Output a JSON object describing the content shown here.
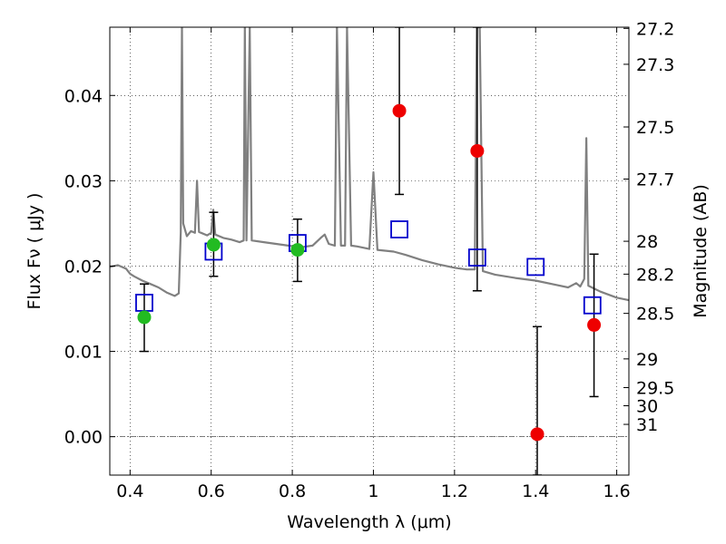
{
  "chart_data": {
    "type": "scatter",
    "title": "",
    "xlabel": "Wavelength  λ (μm)",
    "ylabel": "Flux  Fν  ( μJy )",
    "ylabel_right": "Magnitude (AB)",
    "xlim": [
      0.35,
      1.63
    ],
    "ylim": [
      -0.0045,
      0.048
    ],
    "grid": true,
    "x_ticks": [
      0.4,
      0.6,
      0.8,
      1.0,
      1.2,
      1.4,
      1.6
    ],
    "x_tick_labels": [
      "0.4",
      "0.6",
      "0.8",
      "1",
      "1.2",
      "1.4",
      "1.6"
    ],
    "y_ticks": [
      0.0,
      0.01,
      0.02,
      0.03,
      0.04
    ],
    "y_tick_labels": [
      "0.00",
      "0.01",
      "0.02",
      "0.03",
      "0.04"
    ],
    "right_ticks": [
      {
        "mag": 27.2,
        "label": "27.2"
      },
      {
        "mag": 27.3,
        "label": "27.3"
      },
      {
        "mag": 27.5,
        "label": "27.5"
      },
      {
        "mag": 27.7,
        "label": "27.7"
      },
      {
        "mag": 28.0,
        "label": "28"
      },
      {
        "mag": 28.2,
        "label": "28.2"
      },
      {
        "mag": 28.5,
        "label": "28.5"
      },
      {
        "mag": 29.0,
        "label": "29"
      },
      {
        "mag": 29.5,
        "label": "29.5"
      },
      {
        "mag": 30.0,
        "label": "30"
      },
      {
        "mag": 31.0,
        "label": "31"
      }
    ],
    "series": [
      {
        "kind": "line",
        "color": "#808080",
        "points": [
          [
            0.35,
            0.0199
          ],
          [
            0.37,
            0.0201
          ],
          [
            0.39,
            0.0197
          ],
          [
            0.4,
            0.0191
          ],
          [
            0.41,
            0.0188
          ],
          [
            0.43,
            0.0183
          ],
          [
            0.45,
            0.0179
          ],
          [
            0.47,
            0.0175
          ],
          [
            0.49,
            0.0169
          ],
          [
            0.51,
            0.0165
          ],
          [
            0.52,
            0.0168
          ],
          [
            0.525,
            0.024
          ],
          [
            0.528,
            0.048
          ],
          [
            0.531,
            0.025
          ],
          [
            0.54,
            0.0235
          ],
          [
            0.55,
            0.0241
          ],
          [
            0.56,
            0.0239
          ],
          [
            0.565,
            0.03
          ],
          [
            0.57,
            0.024
          ],
          [
            0.59,
            0.0236
          ],
          [
            0.6,
            0.0239
          ],
          [
            0.605,
            0.0266
          ],
          [
            0.61,
            0.0237
          ],
          [
            0.63,
            0.0233
          ],
          [
            0.65,
            0.0231
          ],
          [
            0.67,
            0.0228
          ],
          [
            0.68,
            0.023
          ],
          [
            0.683,
            0.048
          ],
          [
            0.687,
            0.023
          ],
          [
            0.695,
            0.048
          ],
          [
            0.7,
            0.023
          ],
          [
            0.73,
            0.0228
          ],
          [
            0.76,
            0.0226
          ],
          [
            0.79,
            0.0224
          ],
          [
            0.82,
            0.0222
          ],
          [
            0.85,
            0.0224
          ],
          [
            0.87,
            0.0233
          ],
          [
            0.88,
            0.0237
          ],
          [
            0.89,
            0.0226
          ],
          [
            0.905,
            0.0224
          ],
          [
            0.91,
            0.048
          ],
          [
            0.92,
            0.0224
          ],
          [
            0.93,
            0.0224
          ],
          [
            0.935,
            0.048
          ],
          [
            0.945,
            0.0224
          ],
          [
            0.96,
            0.0223
          ],
          [
            0.99,
            0.022
          ],
          [
            1.0,
            0.031
          ],
          [
            1.01,
            0.0219
          ],
          [
            1.05,
            0.0217
          ],
          [
            1.08,
            0.0213
          ],
          [
            1.12,
            0.0207
          ],
          [
            1.16,
            0.0202
          ],
          [
            1.2,
            0.0198
          ],
          [
            1.23,
            0.0196
          ],
          [
            1.25,
            0.0196
          ],
          [
            1.255,
            0.048
          ],
          [
            1.262,
            0.048
          ],
          [
            1.27,
            0.0194
          ],
          [
            1.3,
            0.019
          ],
          [
            1.35,
            0.0186
          ],
          [
            1.4,
            0.0183
          ],
          [
            1.45,
            0.0178
          ],
          [
            1.48,
            0.0175
          ],
          [
            1.5,
            0.018
          ],
          [
            1.51,
            0.0176
          ],
          [
            1.52,
            0.0185
          ],
          [
            1.525,
            0.035
          ],
          [
            1.53,
            0.0177
          ],
          [
            1.56,
            0.017
          ],
          [
            1.6,
            0.0163
          ],
          [
            1.63,
            0.016
          ]
        ]
      },
      {
        "kind": "open-square",
        "color": "#0000cc",
        "points": [
          [
            0.435,
            0.0157
          ],
          [
            0.606,
            0.0217
          ],
          [
            0.813,
            0.0227
          ],
          [
            1.064,
            0.0243
          ],
          [
            1.256,
            0.021
          ],
          [
            1.4,
            0.0199
          ],
          [
            1.54,
            0.0154
          ]
        ]
      },
      {
        "kind": "filled-circle",
        "color": "#22bb22",
        "points": [
          [
            0.435,
            0.014
          ],
          [
            0.606,
            0.0225
          ],
          [
            0.813,
            0.0219
          ]
        ]
      },
      {
        "kind": "filled-circle",
        "color": "#ee0000",
        "points": [
          [
            1.064,
            0.0382
          ],
          [
            1.256,
            0.0335
          ],
          [
            1.404,
            0.0003
          ],
          [
            1.544,
            0.0131
          ]
        ]
      },
      {
        "kind": "errorbar",
        "color": "#000000",
        "points": [
          {
            "x": 0.435,
            "y": 0.014,
            "lo": 0.01,
            "hi": 0.0179
          },
          {
            "x": 0.606,
            "y": 0.0225,
            "lo": 0.0188,
            "hi": 0.0263
          },
          {
            "x": 0.813,
            "y": 0.0219,
            "lo": 0.0182,
            "hi": 0.0255
          },
          {
            "x": 1.064,
            "y": 0.0382,
            "lo": 0.0284,
            "hi": 0.048
          },
          {
            "x": 1.256,
            "y": 0.0335,
            "lo": 0.0171,
            "hi": 0.048
          },
          {
            "x": 1.404,
            "y": 0.0003,
            "lo": -0.0045,
            "hi": 0.0129
          },
          {
            "x": 1.544,
            "y": 0.0131,
            "lo": 0.0047,
            "hi": 0.0214
          }
        ]
      }
    ]
  }
}
